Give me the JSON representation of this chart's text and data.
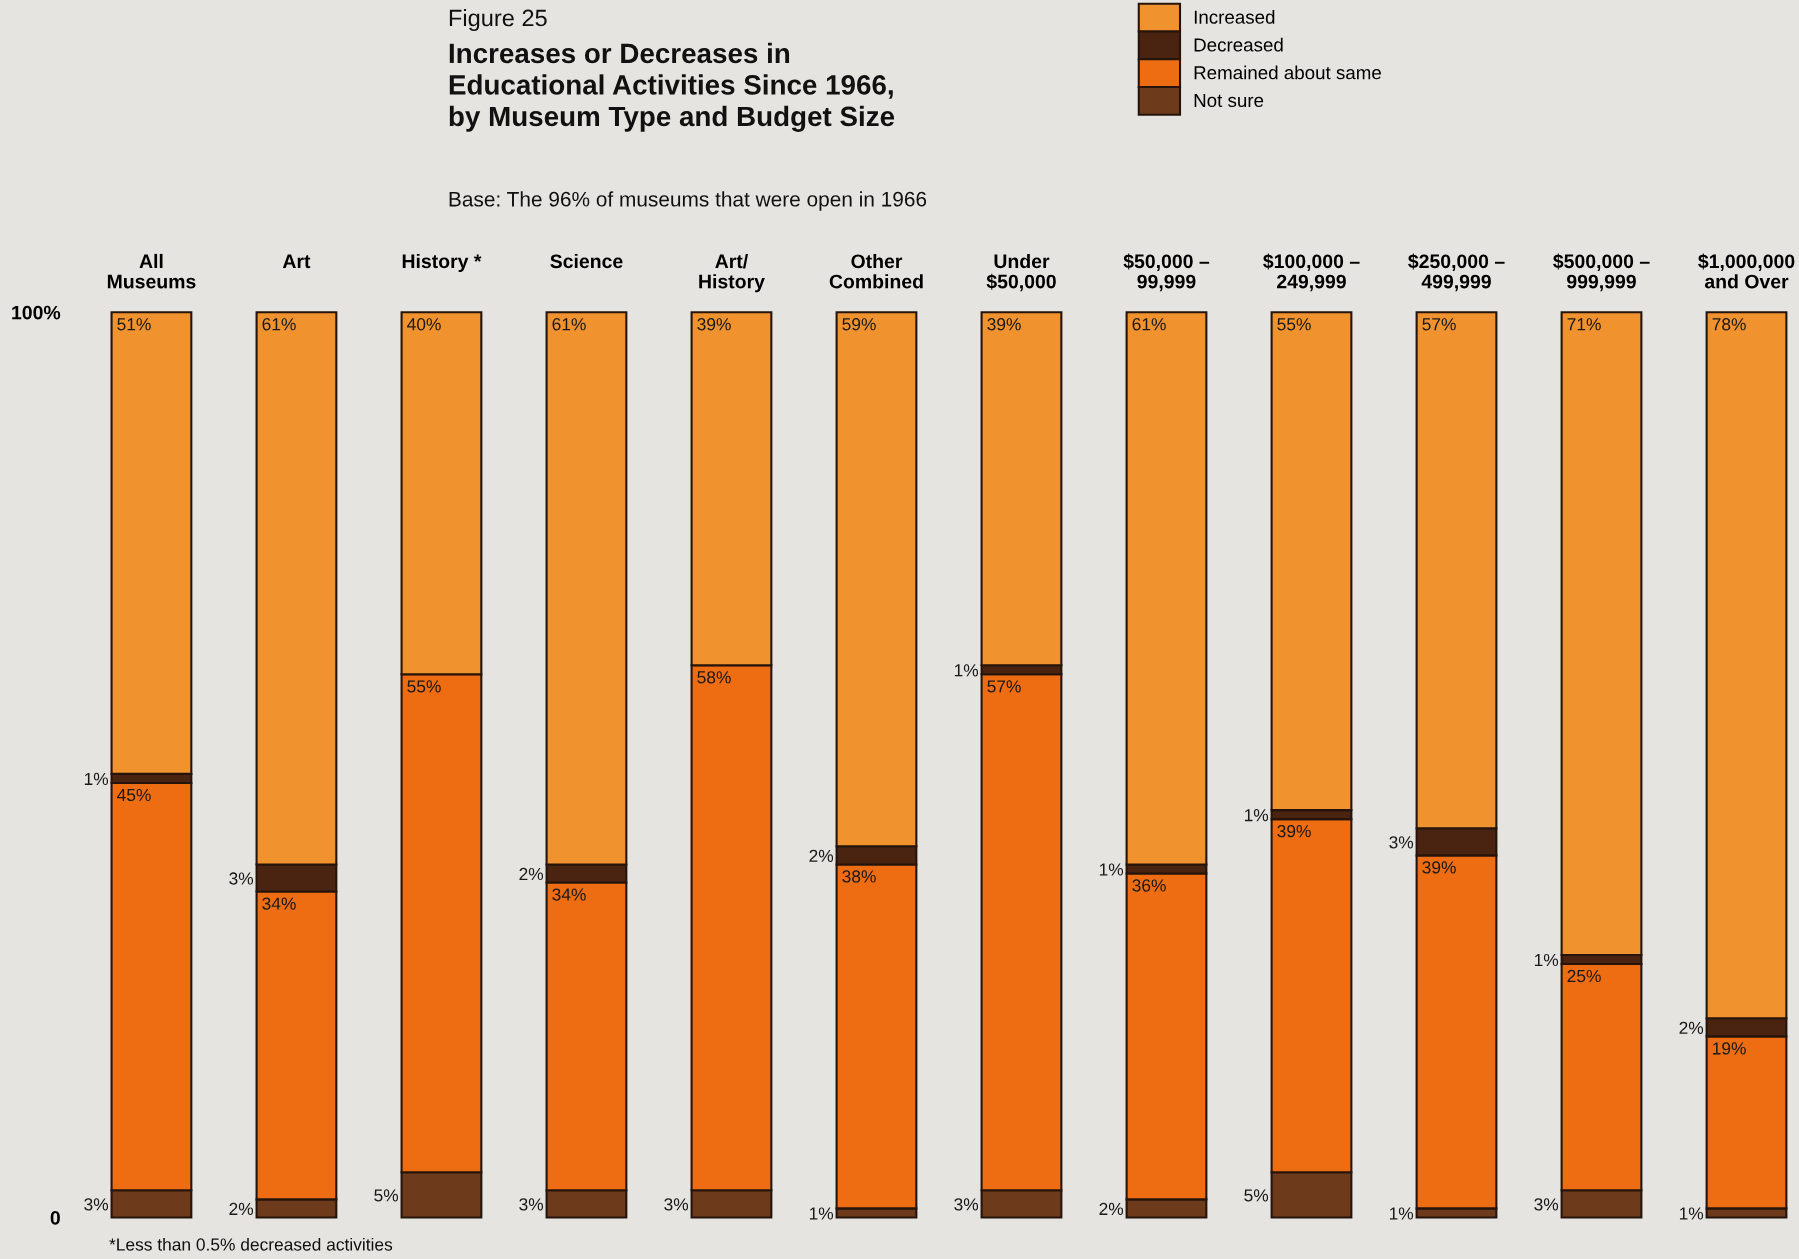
{
  "chart_data": {
    "type": "bar",
    "stacked": true,
    "title": "Increases or Decreases in\nEducational Activities Since 1966,\nby Museum Type and Budget Size",
    "subtitle": "Base: The 96% of museums that were open in 1966",
    "annotations": [
      "Figure 25",
      "*Less than 0.5% decreased activities"
    ],
    "categories": [
      "All\nMuseums",
      "Art",
      "History *",
      "Science",
      "Art/\nHistory",
      "Other\nCombined",
      "Under\n$50,000",
      "$50,000 –\n99,999",
      "$100,000 –\n249,999",
      "$250,000 –\n499,999",
      "$500,000 –\n999,999",
      "$1,000,000\nand Over"
    ],
    "series": [
      {
        "name": "Not sure",
        "color": "#6e3a1c",
        "values": [
          3,
          2,
          5,
          3,
          3,
          1,
          3,
          2,
          5,
          1,
          3,
          1
        ],
        "value_labels": [
          "3%",
          "2%",
          "5%",
          "3%",
          "3%",
          "1%",
          "3%",
          "2%",
          "5%",
          "1%",
          "3%",
          "1%"
        ]
      },
      {
        "name": "Remained about same",
        "color": "#ee6d12",
        "values": [
          45,
          34,
          55,
          34,
          58,
          38,
          57,
          36,
          39,
          39,
          25,
          19
        ],
        "value_labels": [
          "45%",
          "34%",
          "55%",
          "34%",
          "58%",
          "38%",
          "57%",
          "36%",
          "39%",
          "39%",
          "25%",
          "19%"
        ]
      },
      {
        "name": "Decreased",
        "color": "#4a2410",
        "values": [
          1,
          3,
          0,
          2,
          0,
          2,
          1,
          1,
          1,
          3,
          1,
          2
        ],
        "value_labels": [
          "1%",
          "3%",
          null,
          "2%",
          null,
          "2%",
          "1%",
          "1%",
          "1%",
          "3%",
          "1%",
          "2%"
        ]
      },
      {
        "name": "Increased",
        "color": "#f0922e",
        "values": [
          51,
          61,
          40,
          61,
          39,
          59,
          39,
          61,
          55,
          57,
          71,
          78
        ],
        "value_labels": [
          "51%",
          "61%",
          "40%",
          "61%",
          "39%",
          "59%",
          "39%",
          "61%",
          "55%",
          "57%",
          "71%",
          "78%"
        ]
      }
    ],
    "ylim": [
      0,
      100
    ],
    "yticks": [
      {
        "value": 0,
        "label": "0"
      },
      {
        "value": 100,
        "label": "100%"
      }
    ],
    "legend": "top right"
  }
}
